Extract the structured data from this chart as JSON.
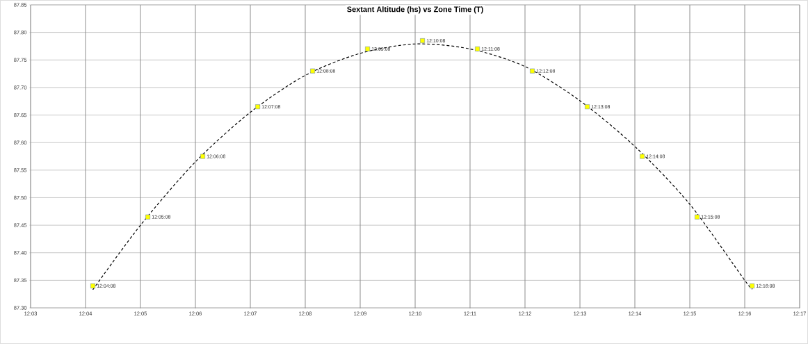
{
  "chart_data": {
    "type": "scatter",
    "title": "Sextant Altitude (hs)  vs  Zone Time (T)",
    "x": [
      12.06889,
      12.08556,
      12.10222,
      12.11889,
      12.13556,
      12.15222,
      12.16889,
      12.18556,
      12.20222,
      12.21889,
      12.23556,
      12.25222,
      12.26889
    ],
    "series": [
      {
        "color": "#ffff00",
        "marker": "square",
        "values": [
          87.34,
          87.465,
          87.575,
          87.665,
          87.73,
          87.77,
          87.785,
          87.77,
          87.73,
          87.665,
          87.575,
          87.465,
          87.34
        ]
      },
      {
        "type": "line",
        "color": "#000000",
        "line_style": "dashed",
        "marker": "none",
        "x": [
          12.06889,
          12.08333,
          12.1,
          12.11667,
          12.13333,
          12.15,
          12.16667,
          12.18333,
          12.2,
          12.21667,
          12.23333,
          12.25,
          12.26667,
          12.26889
        ],
        "values": [
          87.333,
          87.45,
          87.565,
          87.655,
          87.722,
          87.762,
          87.779,
          87.77,
          87.738,
          87.676,
          87.593,
          87.488,
          87.35,
          87.335
        ]
      }
    ],
    "annotations": [
      {
        "text": "12:04:08",
        "x": 12.06889,
        "y": 87.34
      },
      {
        "text": "12:05:08",
        "x": 12.08556,
        "y": 87.465
      },
      {
        "text": "12:06:08",
        "x": 12.10222,
        "y": 87.575
      },
      {
        "text": "12:07:08",
        "x": 12.11889,
        "y": 87.665
      },
      {
        "text": "12:08:08",
        "x": 12.13556,
        "y": 87.73
      },
      {
        "text": "12:09:08",
        "x": 12.15222,
        "y": 87.77
      },
      {
        "text": "12:10:08",
        "x": 12.16889,
        "y": 87.785
      },
      {
        "text": "12:11:08",
        "x": 12.18556,
        "y": 87.77
      },
      {
        "text": "12:12:08",
        "x": 12.20222,
        "y": 87.73
      },
      {
        "text": "12:13:08",
        "x": 12.21889,
        "y": 87.665
      },
      {
        "text": "12:14:08",
        "x": 12.23556,
        "y": 87.575
      },
      {
        "text": "12:15:08",
        "x": 12.25222,
        "y": 87.465
      },
      {
        "text": "12:16:08",
        "x": 12.26889,
        "y": 87.34
      }
    ],
    "xlim": [
      12.05,
      12.28333
    ],
    "xticks": [
      {
        "value": 12.05,
        "label": "12:03"
      },
      {
        "value": 12.06667,
        "label": "12:04"
      },
      {
        "value": 12.08333,
        "label": "12:05"
      },
      {
        "value": 12.1,
        "label": "12:06"
      },
      {
        "value": 12.11667,
        "label": "12:07"
      },
      {
        "value": 12.13333,
        "label": "12:08"
      },
      {
        "value": 12.15,
        "label": "12:09"
      },
      {
        "value": 12.16667,
        "label": "12:10"
      },
      {
        "value": 12.18333,
        "label": "12:11"
      },
      {
        "value": 12.2,
        "label": "12:12"
      },
      {
        "value": 12.21667,
        "label": "12:13"
      },
      {
        "value": 12.23333,
        "label": "12:14"
      },
      {
        "value": 12.25,
        "label": "12:15"
      },
      {
        "value": 12.26667,
        "label": "12:16"
      },
      {
        "value": 12.28333,
        "label": "12:17"
      }
    ],
    "ylim": [
      87.3,
      87.85
    ],
    "yticks": [
      {
        "value": 87.3,
        "label": "87.30"
      },
      {
        "value": 87.35,
        "label": "87.35"
      },
      {
        "value": 87.4,
        "label": "87.40"
      },
      {
        "value": 87.45,
        "label": "87.45"
      },
      {
        "value": 87.5,
        "label": "87.50"
      },
      {
        "value": 87.55,
        "label": "87.55"
      },
      {
        "value": 87.6,
        "label": "87.60"
      },
      {
        "value": 87.65,
        "label": "87.65"
      },
      {
        "value": 87.7,
        "label": "87.70"
      },
      {
        "value": 87.75,
        "label": "87.75"
      },
      {
        "value": 87.8,
        "label": "87.80"
      },
      {
        "value": 87.85,
        "label": "87.85"
      }
    ],
    "grid": true
  }
}
